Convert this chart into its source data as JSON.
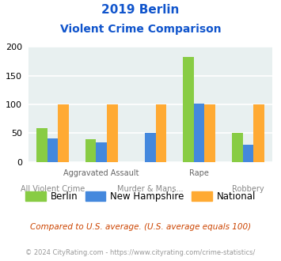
{
  "title_line1": "2019 Berlin",
  "title_line2": "Violent Crime Comparison",
  "categories": [
    "All Violent Crime",
    "Aggravated Assault",
    "Murder & Mans...",
    "Rape",
    "Robbery"
  ],
  "top_labels": [
    "",
    "Aggravated Assault",
    "",
    "Rape",
    ""
  ],
  "bottom_labels": [
    "All Violent Crime",
    "",
    "Murder & Mans...",
    "",
    "Robbery"
  ],
  "berlin": [
    58,
    40,
    0,
    183,
    50
  ],
  "new_hampshire": [
    41,
    34,
    50,
    102,
    30
  ],
  "national": [
    100,
    100,
    100,
    100,
    100
  ],
  "berlin_color": "#88cc44",
  "new_hampshire_color": "#4488dd",
  "national_color": "#ffaa33",
  "bg_color": "#e8f0f0",
  "title_color": "#1155cc",
  "ylabel_max": 200,
  "yticks": [
    0,
    50,
    100,
    150,
    200
  ],
  "footnote1": "Compared to U.S. average. (U.S. average equals 100)",
  "footnote2": "© 2024 CityRating.com - https://www.cityrating.com/crime-statistics/",
  "footnote1_color": "#cc4400",
  "footnote2_color": "#999999",
  "legend_labels": [
    "Berlin",
    "New Hampshire",
    "National"
  ]
}
